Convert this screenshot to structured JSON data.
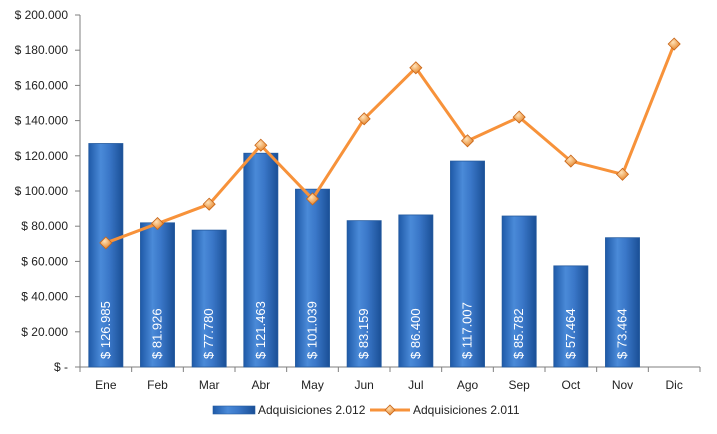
{
  "chart_data": {
    "type": "bar",
    "categories": [
      "Ene",
      "Feb",
      "Mar",
      "Abr",
      "May",
      "Jun",
      "Jul",
      "Ago",
      "Sep",
      "Oct",
      "Nov",
      "Dic"
    ],
    "series": [
      {
        "name": "Adquisiciones 2.012",
        "type": "bar",
        "color": "#3a77c8",
        "values": [
          126985,
          81926,
          77780,
          121463,
          101039,
          83159,
          86400,
          117007,
          85782,
          57464,
          73464,
          null
        ],
        "labels": [
          "$ 126.985",
          "$ 81.926",
          "$ 77.780",
          "$ 121.463",
          "$ 101.039",
          "$ 83.159",
          "$ 86.400",
          "$ 117.007",
          "$ 85.782",
          "$ 57.464",
          "$ 73.464",
          ""
        ]
      },
      {
        "name": "Adquisiciones 2.011",
        "type": "line",
        "color": "#f7923a",
        "values": [
          70500,
          81500,
          92500,
          126000,
          95500,
          141000,
          170000,
          128500,
          142000,
          117000,
          109500,
          183500
        ]
      }
    ],
    "yticks": [
      0,
      20000,
      40000,
      60000,
      80000,
      100000,
      120000,
      140000,
      160000,
      180000,
      200000
    ],
    "ytick_labels": [
      "$ -",
      "$ 20.000",
      "$ 40.000",
      "$ 60.000",
      "$ 80.000",
      "$ 100.000",
      "$ 120.000",
      "$ 140.000",
      "$ 160.000",
      "$ 180.000",
      "$ 200.000"
    ],
    "ylim": [
      0,
      200000
    ],
    "grid": false,
    "legend_position": "bottom"
  }
}
